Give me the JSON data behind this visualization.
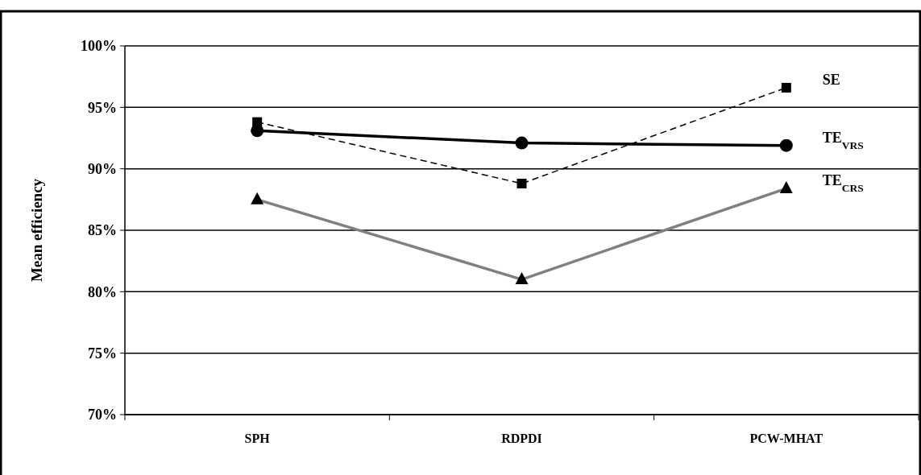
{
  "chart_data": {
    "type": "line",
    "ylabel": "Mean efficiency",
    "categories": [
      "SPH",
      "RDPDI",
      "PCW-MHAT"
    ],
    "ylim": [
      70,
      100
    ],
    "yticks": [
      {
        "value": 70,
        "label": "70%"
      },
      {
        "value": 75,
        "label": "75%"
      },
      {
        "value": 80,
        "label": "80%"
      },
      {
        "value": 85,
        "label": "85%"
      },
      {
        "value": 90,
        "label": "90%"
      },
      {
        "value": 95,
        "label": "95%"
      },
      {
        "value": 100,
        "label": "100%"
      }
    ],
    "grid": "y",
    "legend": false,
    "series": [
      {
        "name": "SE",
        "color": "#000000",
        "values": [
          93.8,
          88.8,
          96.6
        ],
        "marker": "square",
        "line_style": "dashed"
      },
      {
        "name": "TE$_{VRS}$",
        "color": "#000000",
        "values": [
          93.1,
          92.1,
          91.9
        ],
        "marker": "circle",
        "line_style": "solid"
      },
      {
        "name": "TE$_{CRS}$",
        "color": "#808080",
        "values": [
          87.5,
          81.0,
          88.4
        ],
        "marker": "triangle",
        "line_style": "solid"
      }
    ]
  }
}
